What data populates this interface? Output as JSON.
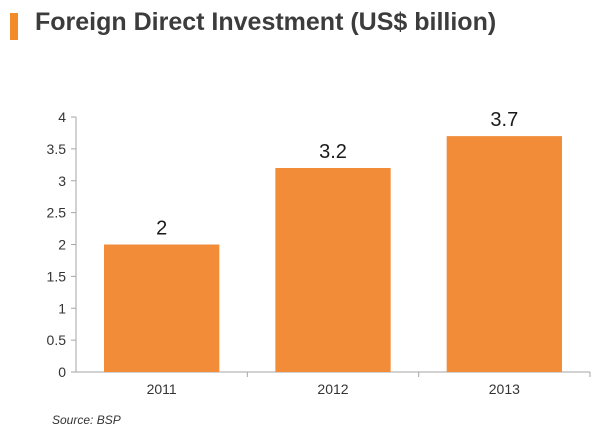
{
  "header": {
    "title": "Foreign Direct Investment (US$ billion)",
    "accent_color": "#F28C28"
  },
  "chart_data": {
    "type": "bar",
    "categories": [
      "2011",
      "2012",
      "2013"
    ],
    "values": [
      2,
      3.2,
      3.7
    ],
    "data_labels": [
      "2",
      "3.2",
      "3.7"
    ],
    "yticks": [
      "0",
      "0.5",
      "1",
      "1.5",
      "2",
      "2.5",
      "3",
      "3.5",
      "4"
    ],
    "ylim": [
      0,
      4
    ],
    "grid": false,
    "legend": "none",
    "bar_color": "#F28C38",
    "axis_color": "#A6A6A6"
  },
  "footer": {
    "source": "Source: BSP"
  }
}
